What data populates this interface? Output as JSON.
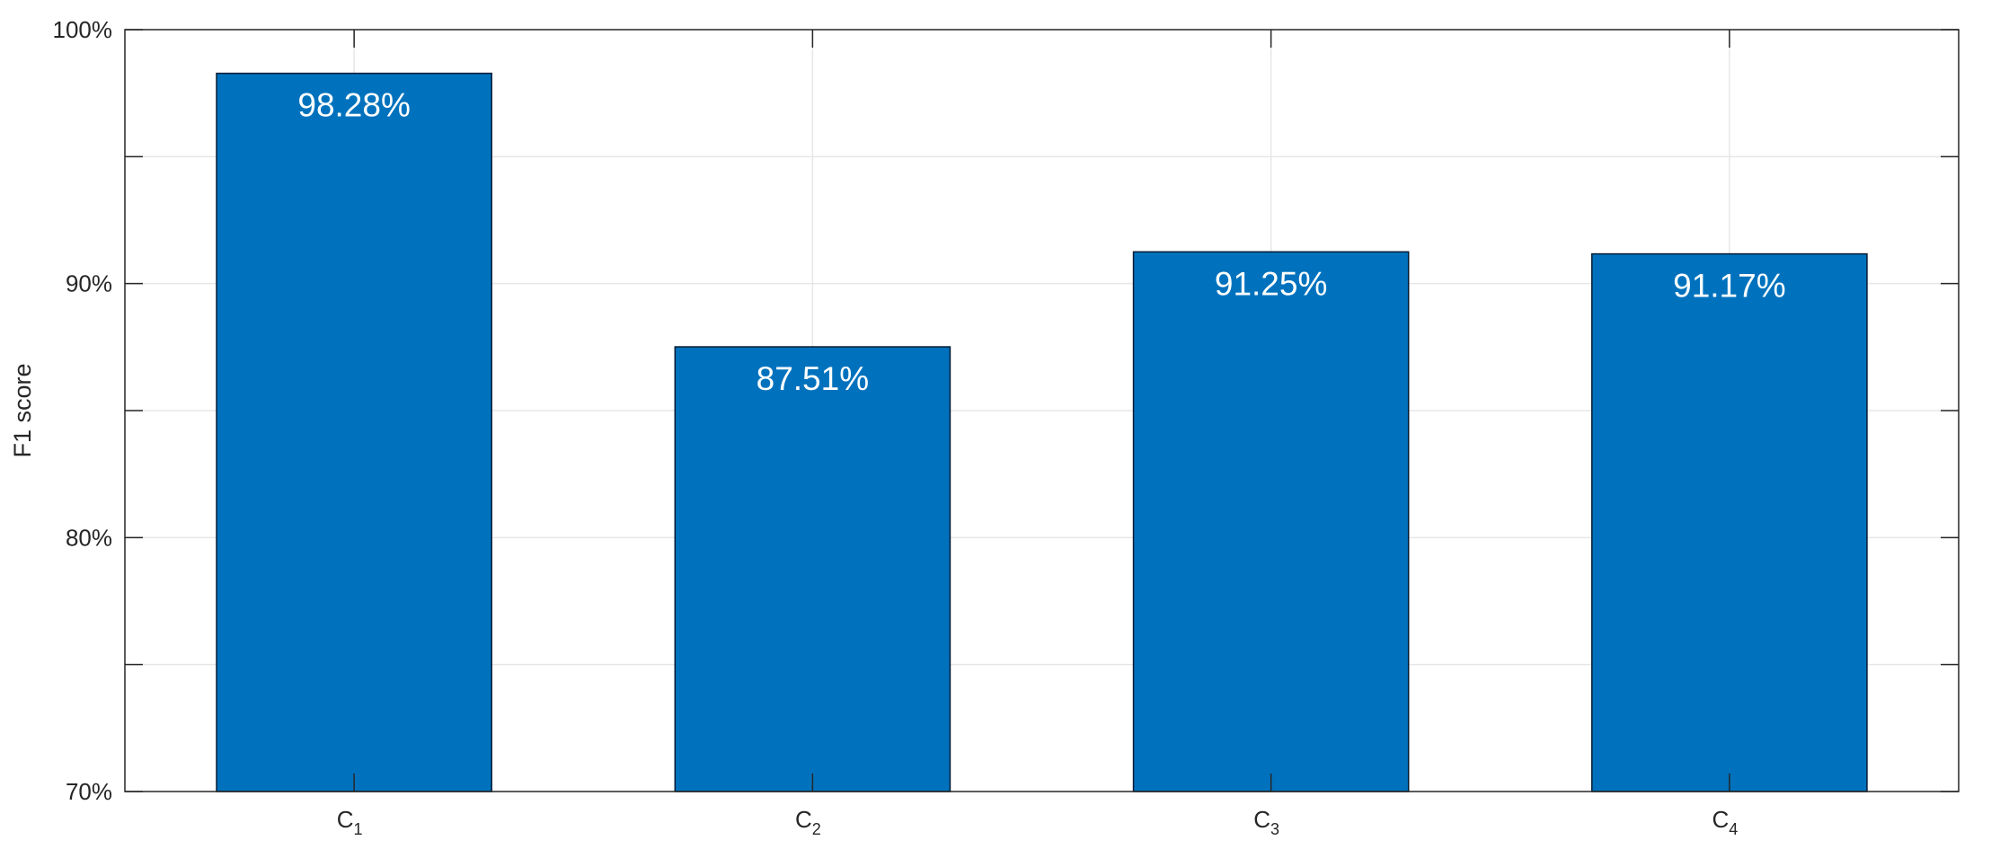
{
  "chart_data": {
    "type": "bar",
    "title": "",
    "xlabel": "",
    "ylabel": "F1 score",
    "categories": [
      "C1",
      "C2",
      "C3",
      "C4"
    ],
    "category_labels": [
      {
        "base": "C",
        "sub": "1"
      },
      {
        "base": "C",
        "sub": "2"
      },
      {
        "base": "C",
        "sub": "3"
      },
      {
        "base": "C",
        "sub": "4"
      }
    ],
    "values": [
      98.28,
      87.51,
      91.25,
      91.17
    ],
    "data_labels": [
      "98.28%",
      "87.51%",
      "91.25%",
      "91.17%"
    ],
    "ylim": [
      70,
      100
    ],
    "yticks": [
      70,
      75,
      80,
      85,
      90,
      95,
      100
    ],
    "ytick_labels": [
      "70%",
      "",
      "80%",
      "",
      "90%",
      "",
      "100%"
    ],
    "grid": true,
    "bar_color": "#0072BD",
    "bar_edge_color": "#001a33",
    "grid_color": "#e6e6e6",
    "axis_color": "#262626"
  }
}
